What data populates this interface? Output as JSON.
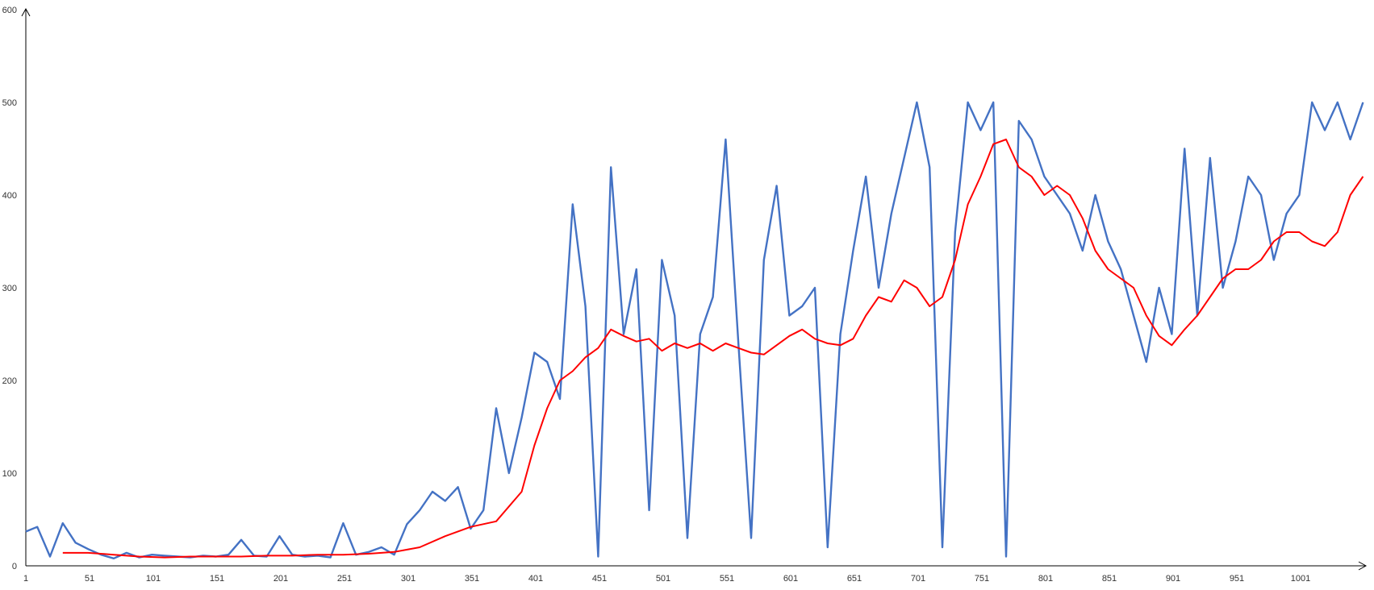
{
  "chart_data": {
    "type": "line",
    "title": "",
    "xlabel": "",
    "ylabel": "",
    "xlim": [
      1,
      1050
    ],
    "ylim": [
      0,
      600
    ],
    "grid": false,
    "legend": "none",
    "x_ticks": [
      "1",
      "51",
      "101",
      "151",
      "201",
      "251",
      "301",
      "351",
      "401",
      "451",
      "501",
      "551",
      "601",
      "651",
      "701",
      "751",
      "801",
      "851",
      "901",
      "951",
      "1001"
    ],
    "y_ticks": [
      "0",
      "100",
      "200",
      "300",
      "400",
      "500",
      "600"
    ],
    "colors": {
      "raw": "#4472c4",
      "smooth": "#ff0000",
      "axis": "#000000"
    },
    "series": [
      {
        "role": "raw",
        "x": [
          1,
          10,
          20,
          30,
          40,
          50,
          60,
          70,
          80,
          90,
          100,
          110,
          120,
          130,
          140,
          150,
          160,
          170,
          180,
          190,
          200,
          210,
          220,
          230,
          240,
          250,
          260,
          270,
          280,
          290,
          300,
          310,
          320,
          330,
          340,
          350,
          360,
          370,
          380,
          390,
          400,
          410,
          420,
          430,
          440,
          450,
          460,
          470,
          480,
          490,
          500,
          510,
          520,
          530,
          540,
          550,
          560,
          570,
          580,
          590,
          600,
          610,
          620,
          630,
          640,
          650,
          660,
          670,
          680,
          690,
          700,
          710,
          720,
          730,
          740,
          750,
          760,
          770,
          780,
          790,
          800,
          810,
          820,
          830,
          840,
          850,
          860,
          870,
          880,
          890,
          900,
          910,
          920,
          930,
          940,
          950,
          960,
          970,
          980,
          990,
          1000,
          1010,
          1020,
          1030,
          1040,
          1050
        ],
        "y": [
          37,
          42,
          10,
          46,
          25,
          18,
          12,
          8,
          14,
          9,
          12,
          11,
          10,
          9,
          11,
          10,
          12,
          28,
          11,
          10,
          32,
          12,
          10,
          11,
          9,
          46,
          12,
          15,
          20,
          12,
          45,
          60,
          80,
          70,
          85,
          40,
          60,
          170,
          100,
          160,
          230,
          220,
          180,
          390,
          280,
          10,
          430,
          250,
          320,
          60,
          330,
          270,
          30,
          250,
          290,
          460,
          240,
          30,
          330,
          410,
          270,
          280,
          300,
          20,
          250,
          340,
          420,
          300,
          380,
          440,
          500,
          430,
          20,
          360,
          500,
          470,
          500,
          10,
          480,
          460,
          420,
          400,
          380,
          340,
          400,
          350,
          320,
          270,
          220,
          300,
          250,
          450,
          270,
          440,
          300,
          350,
          420,
          400,
          330,
          380,
          400,
          500,
          470,
          500,
          460,
          500
        ]
      },
      {
        "role": "smooth",
        "x": [
          30,
          50,
          70,
          90,
          110,
          130,
          150,
          170,
          190,
          210,
          230,
          250,
          270,
          290,
          310,
          330,
          350,
          370,
          390,
          400,
          410,
          420,
          430,
          440,
          450,
          460,
          470,
          480,
          490,
          500,
          510,
          520,
          530,
          540,
          550,
          560,
          570,
          580,
          590,
          600,
          610,
          620,
          630,
          640,
          650,
          660,
          670,
          680,
          690,
          700,
          710,
          720,
          730,
          740,
          750,
          760,
          770,
          780,
          790,
          800,
          810,
          820,
          830,
          840,
          850,
          860,
          870,
          880,
          890,
          900,
          910,
          920,
          930,
          940,
          950,
          960,
          970,
          980,
          990,
          1000,
          1010,
          1020,
          1030,
          1040,
          1050
        ],
        "y": [
          14,
          14,
          12,
          10,
          9,
          10,
          10,
          10,
          11,
          11,
          12,
          12,
          13,
          15,
          20,
          32,
          42,
          48,
          80,
          130,
          170,
          200,
          210,
          225,
          235,
          255,
          248,
          242,
          245,
          232,
          240,
          235,
          240,
          232,
          240,
          235,
          230,
          228,
          238,
          248,
          255,
          245,
          240,
          238,
          245,
          270,
          290,
          285,
          308,
          300,
          280,
          290,
          330,
          390,
          420,
          455,
          460,
          430,
          420,
          400,
          410,
          400,
          375,
          340,
          320,
          310,
          300,
          270,
          248,
          238,
          255,
          270,
          290,
          310,
          320,
          320,
          330,
          350,
          360,
          360,
          350,
          345,
          360,
          400,
          420
        ]
      }
    ]
  }
}
